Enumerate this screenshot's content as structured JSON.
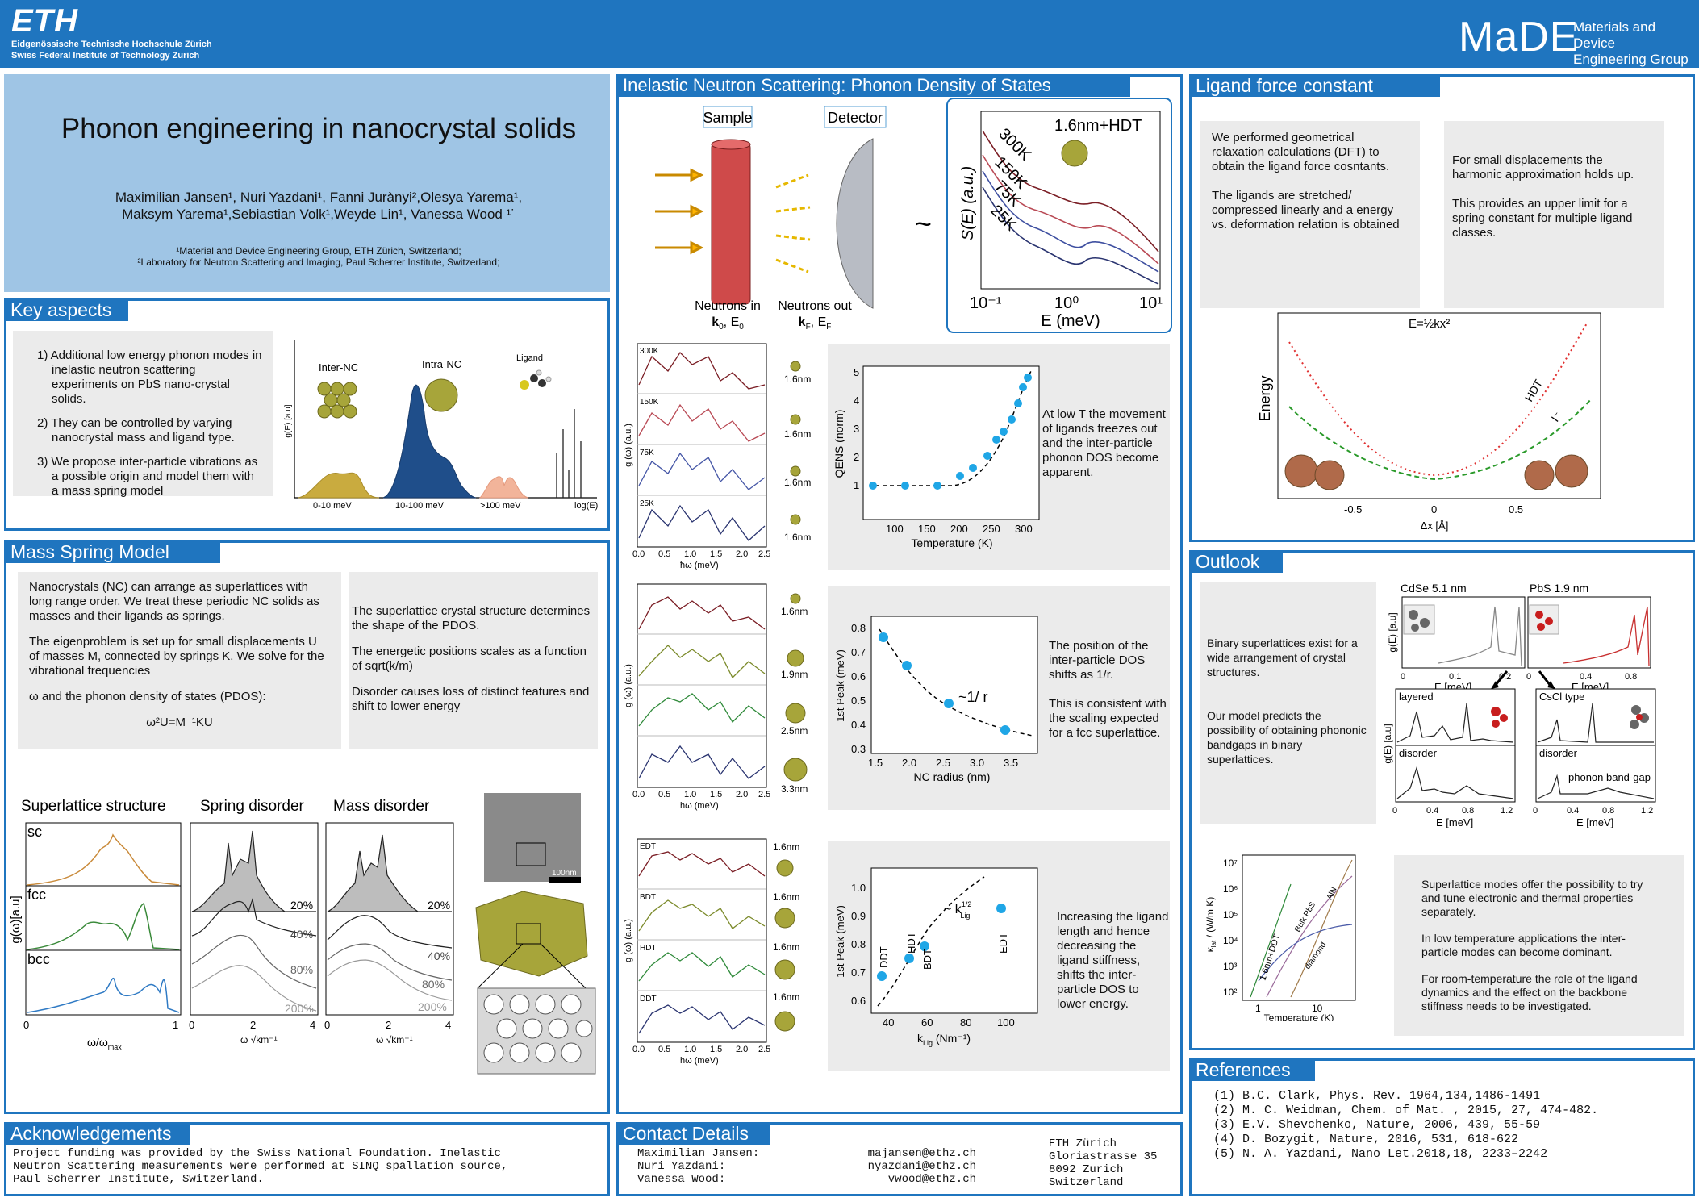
{
  "header": {
    "eth_logo": "ETH",
    "eth_line1": "Eidgenössische Technische Hochschule Zürich",
    "eth_line2": "Swiss Federal Institute of Technology Zurich",
    "made_logo": "MaDE",
    "made_line1": "Materials and Device",
    "made_line2": "Engineering Group"
  },
  "title": {
    "main": "Phonon engineering in nanocrystal solids",
    "authors_line1": "Maximilian Jansen¹, Nuri Yazdani¹, Fanni Jurànyi²,Olesya Yarema¹,",
    "authors_line2": "Maksym Yarema¹,Sebiastian Volk¹,Weyde Lin¹, Vanessa Wood ¹˙",
    "affil1": "¹Material and Device Engineering Group, ETH Zürich, Switzerland;",
    "affil2": "²Laboratory for Neutron Scattering and Imaging, Paul Scherrer Institute, Switzerland;"
  },
  "key_aspects": {
    "title": "Key aspects",
    "items": [
      "1) Additional low energy phonon modes in inelastic neutron scattering experiments on PbS nano-crystal solids.",
      "2) They can be controlled by varying nanocrystal mass and ligand type.",
      "3) We propose inter-particle vibrations as a possible origin and model them with a mass spring model"
    ],
    "fig": {
      "ylabel": "g(E) [a.u]",
      "xlabel": "log(E)",
      "lab_inter": "Inter-NC",
      "lab_intra": "Intra-NC",
      "lab_ligand": "Ligand",
      "x1": "0-10 meV",
      "x2": "10-100 meV",
      "x3": ">100 meV"
    }
  },
  "mass_spring": {
    "title": "Mass Spring Model",
    "box1_p1": "Nanocrystals (NC) can arrange as superlattices with long range order. We treat these periodic NC solids as masses and their ligands as springs.",
    "box1_p2": "The eigenproblem is set up for small displacements U of masses M, connected by springs K. We solve for the vibrational frequencies",
    "box1_p3": "ω and the phonon density of states (PDOS):",
    "equation": "ω²U=M⁻¹KU",
    "box2_p1": "The superlattice crystal structure determines the shape of the PDOS.",
    "box2_p2": "The energetic positions scales as a function of sqrt(k/m)",
    "box2_p3": "Disorder causes loss of distinct features and shift to lower energy",
    "fig_h1": "Superlattice structure",
    "fig_h2": "Spring disorder",
    "fig_h3": "Mass disorder",
    "lab_sc": "sc",
    "lab_fcc": "fcc",
    "lab_bcc": "bcc",
    "ylabel": "g(ω)[a.u]",
    "x1_label": "ω/ω",
    "x1_sub": "max",
    "x_tick0": "0",
    "x_tick1": "1",
    "x2_label": "ω √km⁻¹",
    "x_t0": "0",
    "x_t2": "2",
    "x_t4": "4",
    "pct": [
      "20%",
      "40%",
      "80%",
      "200%"
    ],
    "scale": "100nm"
  },
  "ins": {
    "title": "Inelastic Neutron Scattering: Phonon Density of States",
    "sample": "Sample",
    "detector": "Detector",
    "neutrons_in": "Neutrons in",
    "k_in": "k",
    "k_in_sub": "0",
    "e_in": ", E",
    "e_in_sub": "0",
    "neutrons_out": "Neutrons out",
    "k_out": "k",
    "k_out_sub": "F",
    "e_out": ", E",
    "e_out_sub": "F",
    "tilde": "~",
    "s_plot": {
      "ylabel": "S(E) (a.u.)",
      "xlabel": "E (meV)",
      "label": "1.6nm+HDT",
      "temps": [
        "300K",
        "150K",
        "75K",
        "25K"
      ],
      "ticks": [
        "10⁻¹",
        "10⁰",
        "10¹"
      ]
    },
    "panel1": {
      "labels": [
        "300K",
        "150K",
        "75K",
        "25K"
      ],
      "sizes": [
        "1.6nm",
        "1.6nm",
        "1.6nm",
        "1.6nm"
      ],
      "ylabel": "g   (ω) (a.u.)",
      "ysub": "S",
      "xlabel": "ħω (meV)",
      "ticks": [
        "0.0",
        "0.5",
        "1.0",
        "1.5",
        "2.0",
        "2.5"
      ]
    },
    "panel2": {
      "sizes": [
        "1.6nm",
        "1.9nm",
        "2.5nm",
        "3.3nm"
      ],
      "ylabel": "g   (ω) (a.u.)",
      "ysub": "S",
      "xlabel": "ħω (meV)",
      "ticks": [
        "0.0",
        "0.5",
        "1.0",
        "1.5",
        "2.0",
        "2.5"
      ]
    },
    "panel3": {
      "labels": [
        "EDT",
        "BDT",
        "HDT",
        "DDT"
      ],
      "sizes": [
        "1.6nm",
        "1.6nm",
        "1.6nm",
        "1.6nm"
      ],
      "ylabel": "g   (ω) (a.u.)",
      "ysub": "S",
      "xlabel": "ħω (meV)",
      "ticks": [
        "0.0",
        "0.5",
        "1.0",
        "1.5",
        "2.0",
        "2.5"
      ]
    },
    "qens": {
      "ylabel": "QENS (norm)",
      "xlabel": "Temperature (K)",
      "xticks": [
        "100",
        "150",
        "200",
        "250",
        "300"
      ],
      "yticks": [
        "1",
        "2",
        "3",
        "4",
        "5"
      ]
    },
    "qens_text": "At low T the movement of ligands freezes out and the inter-particle phonon DOS become apparent.",
    "peak": {
      "ylabel": "1st Peak (meV)",
      "xlabel": "NC radius (nm)",
      "xticks": [
        "1.5",
        "2.0",
        "2.5",
        "3.0",
        "3.5"
      ],
      "yticks": [
        "0.3",
        "0.4",
        "0.5",
        "0.6",
        "0.7",
        "0.8"
      ],
      "annot": "~1/ r"
    },
    "peak_text1": "The position of the inter-particle DOS shifts as 1/r.",
    "peak_text2": "This is consistent with the scaling expected for a fcc superlattice.",
    "lig": {
      "ylabel": "1st Peak (meV)",
      "xlabel": "k",
      "xsub": "Lig",
      "xunit": " (Nm⁻¹)",
      "xticks": [
        "40",
        "60",
        "80",
        "100"
      ],
      "yticks": [
        "0.6",
        "0.7",
        "0.8",
        "0.9",
        "1.0"
      ],
      "annot": "~ k",
      "annot_sup": "1/2",
      "annot_sub": "Lig",
      "points": [
        "DDT",
        "HDT",
        "BDT",
        "EDT"
      ]
    },
    "lig_text": "Increasing the ligand length and hence decreasing the ligand stiffness, shifts the inter-particle DOS to lower energy."
  },
  "ligand_fc": {
    "title": "Ligand force constant",
    "box1_p1": "We performed geometrical relaxation calculations (DFT) to obtain the ligand force cosntants.",
    "box1_p2": "The ligands are stretched/ compressed linearly and a energy vs. deformation relation is obtained",
    "box2_p1": "For small displacements the harmonic approximation holds up.",
    "box2_p2": "This provides an upper limit for a spring constant for multiple ligand classes.",
    "fig": {
      "ylabel": "Energy",
      "xlabel": "Δx [Å]",
      "eq": "E=½kx²",
      "xticks": [
        "-0.5",
        "0",
        "0.5"
      ],
      "hdt": "HDT",
      "i": "I⁻"
    }
  },
  "outlook": {
    "title": "Outlook",
    "t1": "Binary superlattices exist for a wide arrangement of crystal structures.",
    "t2": "Our model predicts the possibility of obtaining phononic bandgaps in binary superlattices.",
    "cdse": "CdSe 5.1 nm",
    "pbs": "PbS 1.9 nm",
    "ylabel": "g(E) [a.u]",
    "xlabel": "E [meV]",
    "ticks_a": [
      "0",
      "0.1",
      "0.2"
    ],
    "ticks_b": [
      "0",
      "0.4",
      "0.8"
    ],
    "layered": "layered",
    "cscl": "CsCl type",
    "disorder": "disorder",
    "bandgap": "phonon band-gap",
    "ticks_c": [
      "0",
      "0.4",
      "0.8",
      "1.2"
    ],
    "kappa_y": "κ",
    "kappa_sub": "lat",
    "kappa_unit": " / (W/m K)",
    "kappa_x": "Temperature (K)",
    "kappa_yticks": [
      "10²",
      "10³",
      "10⁴",
      "10⁵",
      "10⁶",
      "10⁷"
    ],
    "kappa_xticks": [
      "1",
      "10"
    ],
    "kappa_lines": [
      "1.6nm+DDT",
      "Bulk PbS",
      "AlN",
      "diamond"
    ],
    "p1": "Superlattice modes offer the possibility to try and tune electronic and thermal properties separately.",
    "p2": "In low temperature applications the inter-particle modes can become dominant.",
    "p3": "For room-temperature the role of the ligand dynamics and the effect on the backbone stiffness needs to be investigated."
  },
  "references": {
    "title": "References",
    "items": [
      "(1) B.C. Clark, Phys. Rev. 1964,134,1486-1491",
      "(2) M. C. Weidman, Chem. of Mat. , 2015, 27, 474-482.",
      "(3) E.V. Shevchenko, Nature, 2006, 439, 55-59",
      "(4) D. Bozygit, Nature, 2016, 531, 618-622",
      "(5) N. A. Yazdani, Nano Let.2018,18, 2233–2242"
    ]
  },
  "ack": {
    "title": "Acknowledgements",
    "text": "Project funding was provided by the Swiss National Foundation. Inelastic Neutron Scattering measurements were performed at SINQ spallation source, Paul Scherrer Institute, Switzerland."
  },
  "contact": {
    "title": "Contact Details",
    "names": [
      "Maximilian Jansen:",
      "Nuri Yazdani:",
      "Vanessa Wood:"
    ],
    "emails": [
      "majansen@ethz.ch",
      "nyazdani@ethz.ch",
      "vwood@ethz.ch"
    ],
    "address": [
      "ETH Zürich",
      "Gloriastrasse 35",
      "8092 Zurich",
      "Switzerland"
    ]
  }
}
